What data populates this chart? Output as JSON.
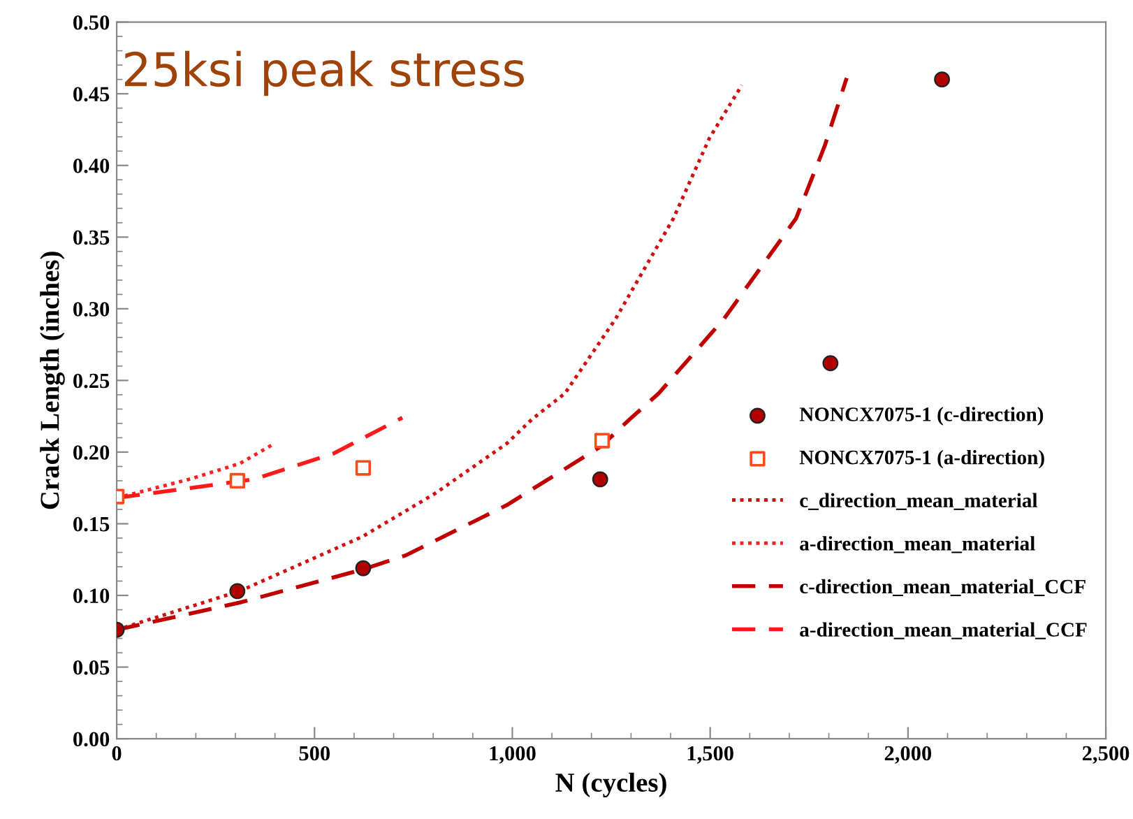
{
  "chart_data": {
    "type": "scatter",
    "xlabel": "N (cycles)",
    "ylabel": "Crack Length (inches)",
    "annotations": [
      "25ksi peak stress"
    ],
    "xlim": [
      0,
      2500
    ],
    "ylim": [
      0,
      0.5
    ],
    "xticks": [
      0,
      500,
      {
        "value": 1000,
        "label": "1,000"
      },
      {
        "value": 1500,
        "label": "1,500"
      },
      {
        "value": 2000,
        "label": "2,000"
      },
      {
        "value": 2500,
        "label": "2,500"
      }
    ],
    "yticks": [
      {
        "value": 0,
        "label": "0.00"
      },
      {
        "value": 0.05,
        "label": "0.05"
      },
      {
        "value": 0.1,
        "label": "0.10"
      },
      {
        "value": 0.15,
        "label": "0.15"
      },
      {
        "value": 0.2,
        "label": "0.20"
      },
      {
        "value": 0.25,
        "label": "0.25"
      },
      {
        "value": 0.3,
        "label": "0.30"
      },
      {
        "value": 0.35,
        "label": "0.35"
      },
      {
        "value": 0.4,
        "label": "0.40"
      },
      {
        "value": 0.45,
        "label": "0.45"
      },
      {
        "value": 0.5,
        "label": "0.50"
      }
    ],
    "grid": false,
    "legend": "right",
    "series": [
      {
        "name": "NONCX7075-1 (c-direction)",
        "marker": "circle",
        "color": "#b00000",
        "x": [
          0,
          305,
          623,
          1222,
          1804,
          2086
        ],
        "values": [
          0.076,
          0.103,
          0.119,
          0.181,
          0.262,
          0.46
        ]
      },
      {
        "name": "NONCX7075-1 (a-direction)",
        "marker": "square",
        "color": "#ff4a1a",
        "x": [
          0,
          305,
          623,
          1227
        ],
        "values": [
          0.169,
          0.18,
          0.189,
          0.208
        ]
      },
      {
        "name": "c_direction_mean_material",
        "type": "line",
        "line_style": "dotted",
        "color": "#d01010",
        "x": [
          0,
          311,
          621,
          804,
          986,
          1050,
          1133,
          1261,
          1407,
          1498,
          1580
        ],
        "values": [
          0.076,
          0.103,
          0.141,
          0.171,
          0.206,
          0.223,
          0.241,
          0.293,
          0.363,
          0.419,
          0.456
        ]
      },
      {
        "name": "a-direction_mean_material",
        "type": "line",
        "line_style": "dotted",
        "color": "#ff2020",
        "x": [
          0,
          183,
          311,
          393
        ],
        "values": [
          0.168,
          0.181,
          0.192,
          0.205
        ]
      },
      {
        "name": "c-direction_mean_material_CCF",
        "type": "line",
        "line_style": "dashed",
        "color": "#c00000",
        "x": [
          0,
          311,
          621,
          731,
          986,
          1224,
          1297,
          1370,
          1535,
          1717,
          1790,
          1845
        ],
        "values": [
          0.076,
          0.095,
          0.118,
          0.128,
          0.163,
          0.204,
          0.223,
          0.241,
          0.293,
          0.363,
          0.414,
          0.461
        ]
      },
      {
        "name": "a-direction_mean_material_CCF",
        "type": "line",
        "line_style": "dashed",
        "color": "#ff1a1a",
        "x": [
          0,
          347,
          548,
          722
        ],
        "values": [
          0.168,
          0.181,
          0.199,
          0.224
        ]
      }
    ]
  }
}
